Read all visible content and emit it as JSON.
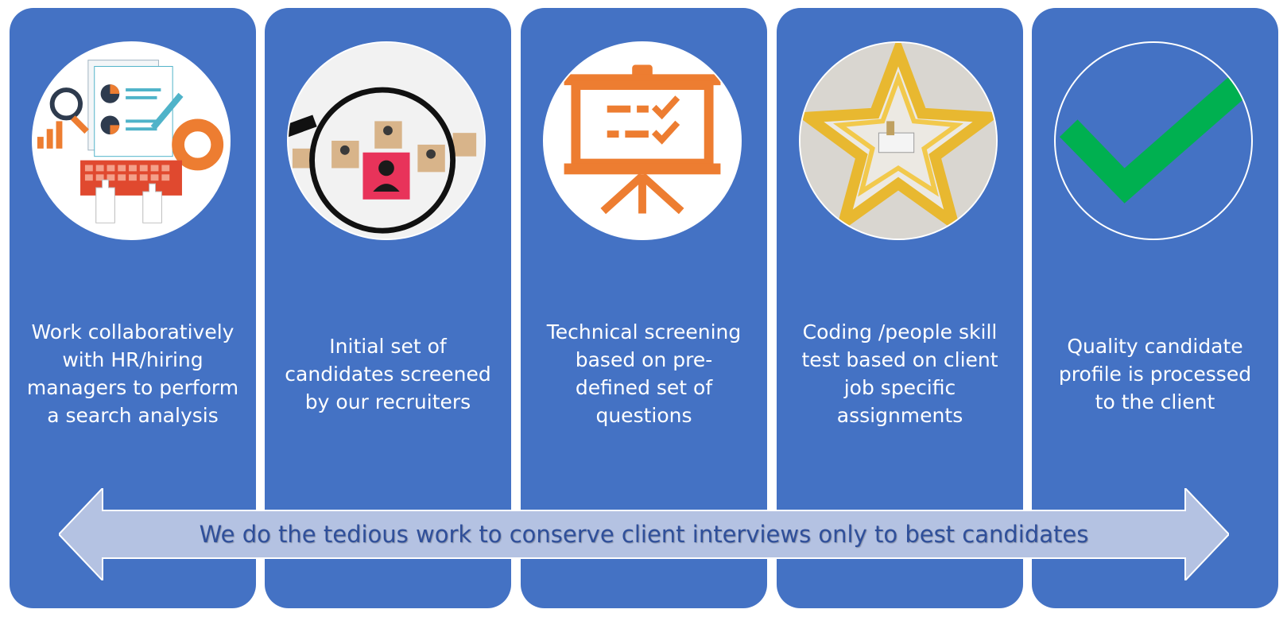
{
  "panels": [
    {
      "text": "Work collaboratively\nwith HR/hiring\nmanagers to perform\na search analysis",
      "icon": "analysis-icon"
    },
    {
      "text": "Initial set of\ncandidates screened\nby our recruiters",
      "icon": "magnifier-icon"
    },
    {
      "text": "Technical screening\nbased on pre-\ndefined set of\nquestions",
      "icon": "presentation-board-icon"
    },
    {
      "text": "Coding /people skill\ntest based on client\njob specific\nassignments",
      "icon": "maze-icon"
    },
    {
      "text": "Quality candidate\nprofile is processed\nto the client",
      "icon": "checkmark-icon"
    }
  ],
  "banner": {
    "text": "We do the tedious work to conserve client interviews only to best candidates"
  },
  "colors": {
    "panel": "#4472c4",
    "arrow": "#b4c2e2",
    "banner_text": "#2f4f9a",
    "orange": "#ed7d31",
    "green": "#00b050"
  }
}
